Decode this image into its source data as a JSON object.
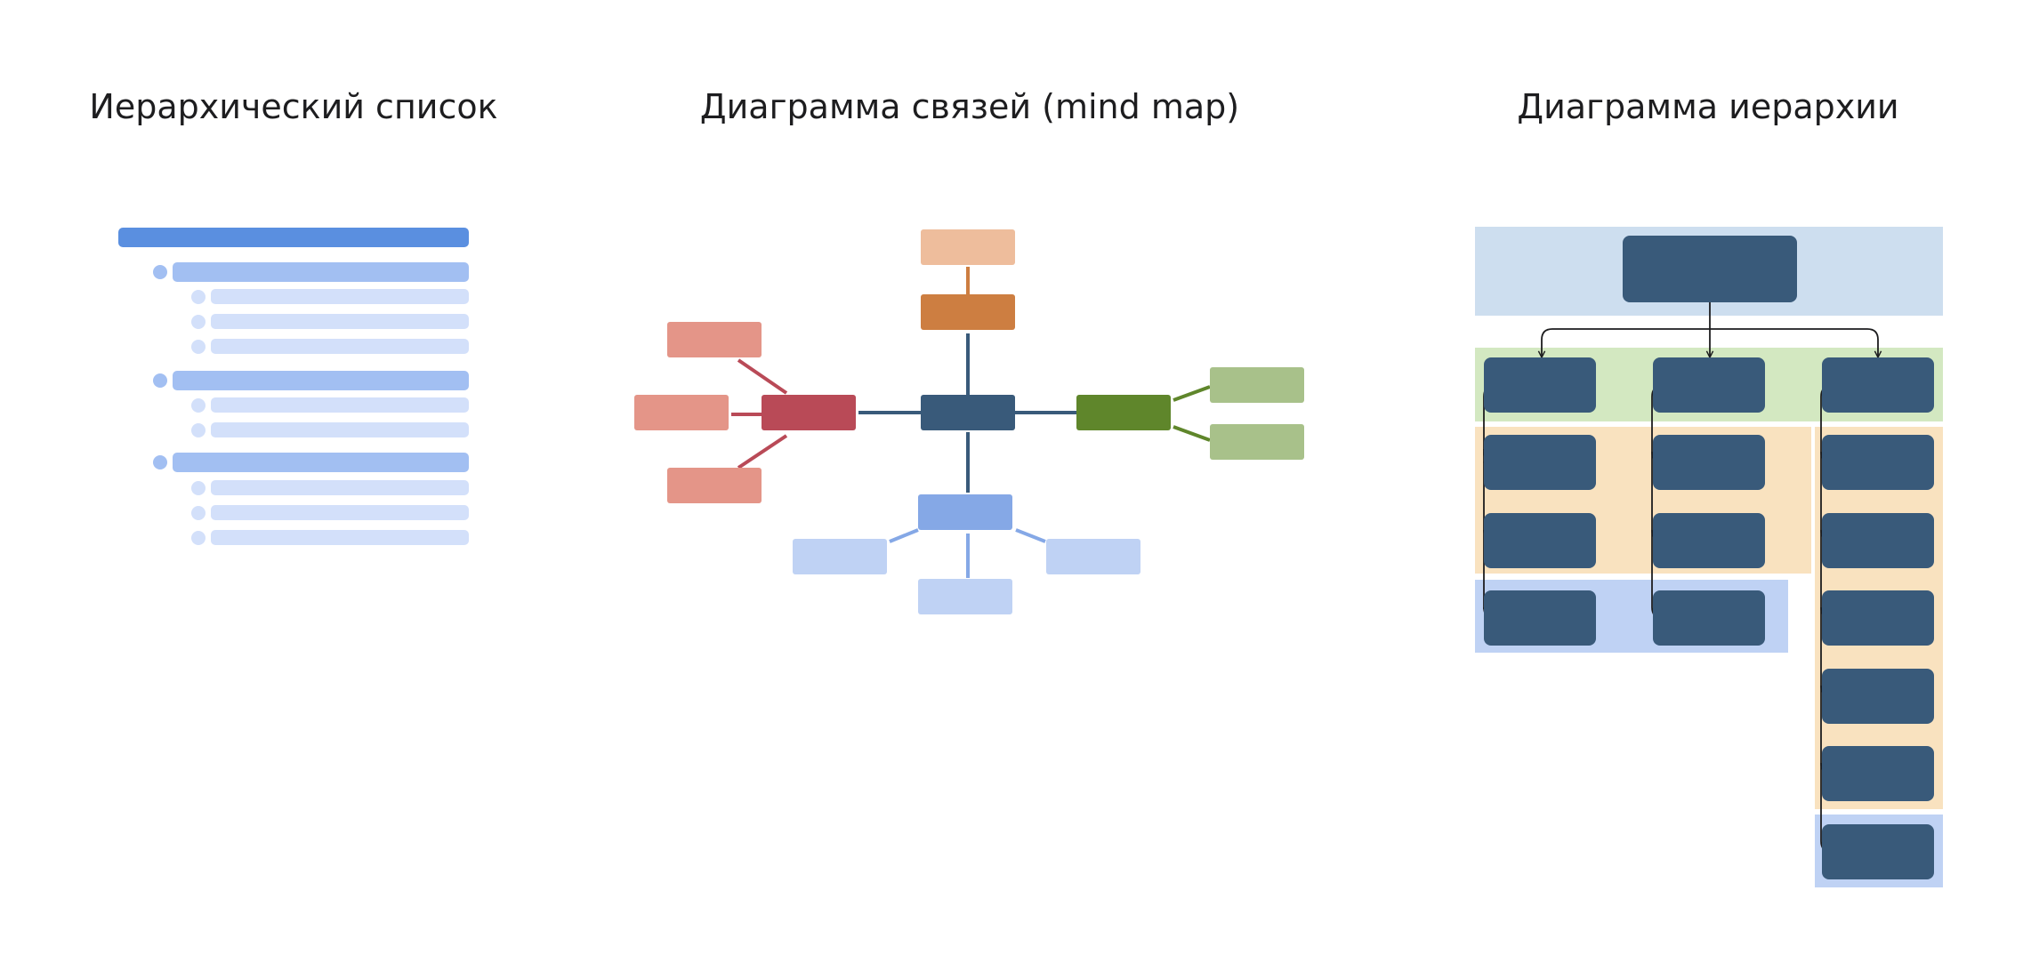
{
  "titles": {
    "list": "Иерархический список",
    "mind_map": "Диаграмма связей (mind map)",
    "hierarchy": "Диаграмма иерархии"
  },
  "colors": {
    "list_root": "#5a8fe0",
    "list_level1": "#a2bff2",
    "list_level2": "#d3e0fa",
    "mind_center": "#395a7a",
    "mind_red": "#b94a57",
    "mind_red_light": "#e49588",
    "mind_orange": "#cd7e41",
    "mind_orange_light": "#eebd9c",
    "mind_green": "#5f862b",
    "mind_green_light": "#a8c18a",
    "mind_blue": "#85a8e6",
    "mind_blue_light": "#bfd2f4",
    "hier_node": "#395a7a",
    "hier_band_top": "#cddeef",
    "hier_band_green": "#d3e8c1",
    "hier_band_orange": "#f9e2bf",
    "hier_band_blue": "#bfd2f4",
    "connector": "#1d1d1f"
  }
}
